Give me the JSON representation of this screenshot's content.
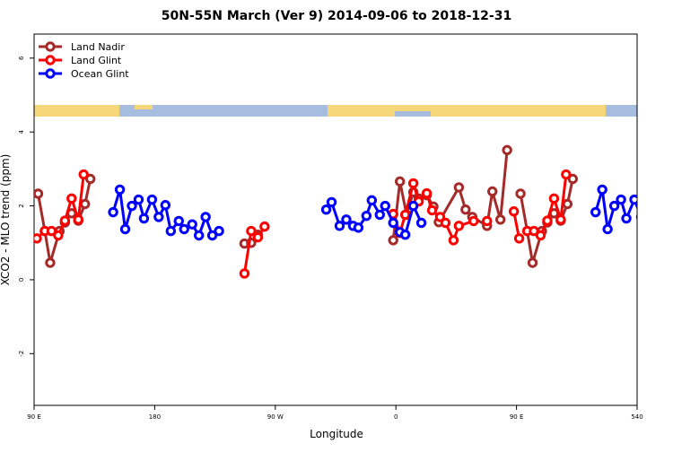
{
  "chart_data": {
    "type": "line",
    "title": "50N-55N March (Ver 9)   2014-09-06 to 2018-12-31",
    "x_label": "Longitude",
    "y_label": "XCO2 - MLO trend (ppm)",
    "xlim": [
      90,
      540
    ],
    "ylim": [
      -3.4,
      6.65
    ],
    "xticks": [
      {
        "value": 90,
        "label": "90 E"
      },
      180,
      {
        "value": 270,
        "label": "90 W"
      },
      {
        "value": 360,
        "label": "0"
      },
      {
        "value": 450,
        "label": "90 E"
      },
      540
    ],
    "yticks": [
      -2,
      0,
      2,
      4,
      6
    ],
    "legend": "top-left",
    "series": [
      {
        "name": "Land Nadir",
        "color": "#a52a2a",
        "x": [
          93,
          98,
          102,
          109,
          113,
          118,
          123,
          128,
          132,
          null,
          247,
          252,
          257,
          null,
          358,
          363,
          368,
          373,
          377,
          383,
          388,
          392,
          407,
          412,
          417,
          428,
          432,
          438,
          443,
          null,
          453,
          458,
          462,
          469,
          473,
          478,
          483,
          488,
          492
        ],
        "values": [
          2.33,
          1.32,
          0.46,
          1.32,
          1.55,
          1.8,
          1.6,
          2.05,
          2.73,
          null,
          0.98,
          1.0,
          1.22,
          null,
          1.07,
          2.66,
          1.76,
          2.37,
          2.2,
          2.29,
          1.98,
          1.56,
          2.5,
          1.9,
          1.7,
          1.46,
          2.39,
          1.63,
          3.51,
          null,
          2.33,
          1.32,
          0.46,
          1.32,
          1.55,
          1.8,
          1.6,
          2.05,
          2.73
        ]
      },
      {
        "name": "Land Glint",
        "color": "#ff0000",
        "x": [
          92,
          98,
          103,
          108,
          113,
          118,
          123,
          127,
          null,
          247,
          252,
          257,
          262,
          null,
          358,
          363,
          367,
          373,
          377,
          383,
          387,
          393,
          397,
          403,
          407,
          418,
          null,
          428,
          null,
          448,
          452,
          null,
          458,
          463,
          468,
          473,
          478,
          483,
          487
        ],
        "values": [
          1.12,
          1.32,
          1.32,
          1.2,
          1.6,
          2.2,
          1.63,
          2.85,
          null,
          0.17,
          1.32,
          1.15,
          1.44,
          null,
          1.78,
          1.27,
          1.76,
          2.61,
          2.12,
          2.34,
          1.88,
          1.7,
          1.54,
          1.07,
          1.46,
          1.59,
          null,
          1.59,
          null,
          1.85,
          1.12,
          null,
          1.32,
          1.32,
          1.2,
          1.6,
          2.2,
          1.63,
          2.85
        ]
      },
      {
        "name": "Ocean Glint",
        "color": "#0000ff",
        "x": [
          149,
          154,
          158,
          163,
          168,
          172,
          178,
          183,
          188,
          192,
          198,
          202,
          208,
          213,
          218,
          223,
          228,
          null,
          308,
          312,
          318,
          323,
          328,
          332,
          338,
          342,
          348,
          352,
          358,
          363,
          367,
          373,
          379,
          null,
          509,
          514,
          518,
          523,
          528,
          532,
          538,
          543
        ],
        "values": [
          1.83,
          2.44,
          1.37,
          2.0,
          2.17,
          1.66,
          2.17,
          1.7,
          2.02,
          1.32,
          1.59,
          1.37,
          1.5,
          1.2,
          1.7,
          1.2,
          1.32,
          null,
          1.9,
          2.1,
          1.46,
          1.63,
          1.46,
          1.41,
          1.73,
          2.15,
          1.76,
          2.0,
          1.54,
          1.29,
          1.22,
          2.0,
          1.54,
          null,
          1.83,
          2.44,
          1.37,
          2.0,
          2.17,
          1.66,
          2.17,
          1.7
        ]
      }
    ]
  }
}
